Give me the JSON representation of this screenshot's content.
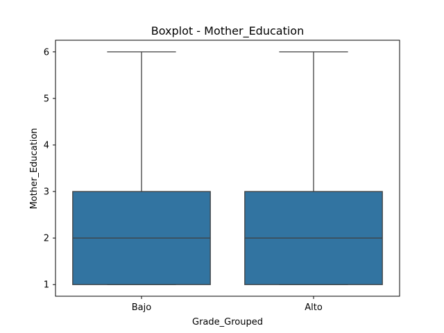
{
  "chart_data": {
    "type": "boxplot",
    "title": "Boxplot - Mother_Education",
    "xlabel": "Grade_Grouped",
    "ylabel": "Mother_Education",
    "categories": [
      "Bajo",
      "Alto"
    ],
    "boxes": [
      {
        "category": "Bajo",
        "whisker_low": 1,
        "q1": 1,
        "median": 2,
        "q3": 3,
        "whisker_high": 6
      },
      {
        "category": "Alto",
        "whisker_low": 1,
        "q1": 1,
        "median": 2,
        "q3": 3,
        "whisker_high": 6
      }
    ],
    "yticks": [
      1,
      2,
      3,
      4,
      5,
      6
    ],
    "ylim": [
      0.75,
      6.25
    ],
    "grid": false,
    "box_color": "#3274a1",
    "line_color": "#3f3f3f"
  }
}
